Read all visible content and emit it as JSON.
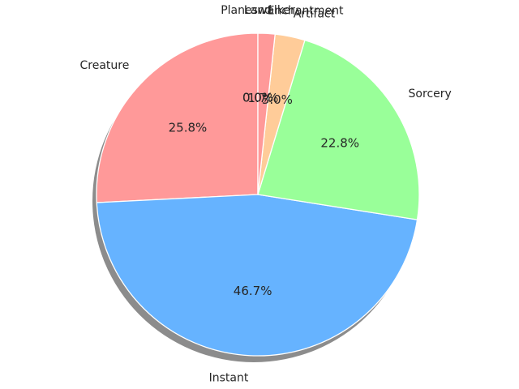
{
  "chart_data": {
    "type": "pie",
    "title": "",
    "categories": [
      "Creature",
      "Instant",
      "Sorcery",
      "Artifact",
      "Enchantment",
      "Planeswalker",
      "Land"
    ],
    "values": [
      25.8,
      46.7,
      22.8,
      3.0,
      1.7,
      0.0,
      0.0
    ],
    "labels": [
      "Creature",
      "Instant",
      "Sorcery",
      "Artifact",
      "Enchantment",
      "Planeswalker",
      "Land"
    ],
    "percent_labels": [
      "25.8%",
      "46.7%",
      "22.8%",
      "3.0%",
      "1.7%",
      "0.0%",
      "0.0%"
    ],
    "colors": [
      "#ff9999",
      "#66b3ff",
      "#99ff99",
      "#ffcc99",
      "#ff9999",
      "#66b3ff",
      "#99ff99"
    ],
    "start_angle_deg": 90,
    "direction": "counterclockwise",
    "shadow": true,
    "slice_edge_color": "#ffffff",
    "legend": "none"
  }
}
